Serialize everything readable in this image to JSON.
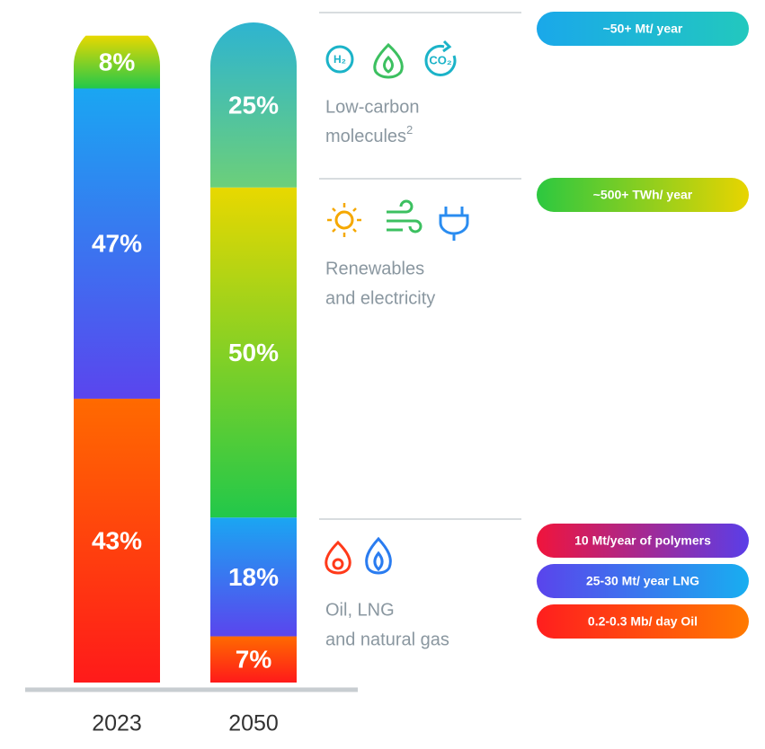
{
  "chart_data": {
    "type": "bar",
    "stacked": true,
    "categories": [
      "2023",
      "2050"
    ],
    "ylim": [
      0,
      100
    ],
    "series": [
      {
        "color": [
          "#ff1a1a",
          "#ff6a00"
        ],
        "values": [
          43,
          7
        ],
        "value_labels": [
          "43%",
          "7%"
        ]
      },
      {
        "color": [
          "#5a45ee",
          "#1aa6f2"
        ],
        "values": [
          47,
          18
        ],
        "value_labels": [
          "47%",
          "18%"
        ]
      },
      {
        "color": [
          "#22c84a",
          "#e8d800"
        ],
        "values": [
          8,
          50
        ],
        "value_labels": [
          "8%",
          "50%"
        ]
      },
      {
        "color": [
          "#6ccf7a",
          "#2eb4d0"
        ],
        "values": [
          null,
          25
        ],
        "value_labels": [
          null,
          "25%"
        ]
      }
    ],
    "groups": [
      {
        "label_lines": [
          "Low-carbon",
          "molecules"
        ],
        "sup": "2",
        "badges": [
          {
            "text": "~50+ Mt/ year",
            "color": [
              "#1aa8ea",
              "#22c8be"
            ]
          }
        ]
      },
      {
        "label_lines": [
          "Renewables",
          "and electricity"
        ],
        "badges": [
          {
            "text": "~500+ TWh/ year",
            "color": [
              "#2cc840",
              "#e8d400"
            ]
          }
        ]
      },
      {
        "label_lines": [
          "Oil, LNG",
          "and natural gas"
        ],
        "badges": [
          {
            "text": "10 Mt/year of polymers",
            "color": [
              "#f0143c",
              "#5a3ee8"
            ]
          },
          {
            "text": "25-30 Mt/ year LNG",
            "color": [
              "#5a44ec",
              "#18aef0"
            ]
          },
          {
            "text": "0.2-0.3 Mb/ day Oil",
            "color": [
              "#ff1e1e",
              "#ff7a00"
            ]
          }
        ]
      }
    ]
  }
}
